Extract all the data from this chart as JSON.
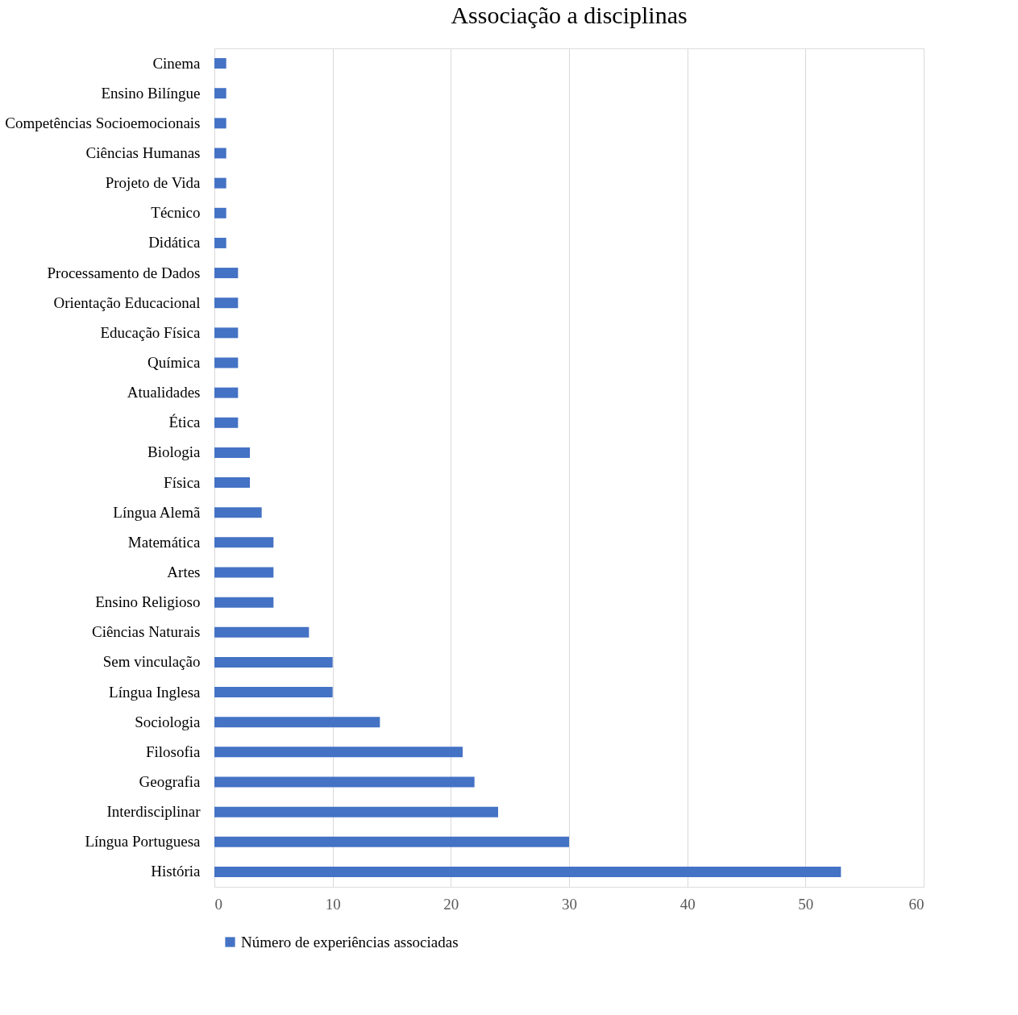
{
  "chart_data": {
    "type": "bar",
    "orientation": "horizontal",
    "title": "Associação a disciplinas",
    "categories": [
      "Cinema",
      "Ensino Bilíngue",
      "Competências Socioemocionais",
      "Ciências Humanas",
      "Projeto de Vida",
      "Técnico",
      "Didática",
      "Processamento de Dados",
      "Orientação Educacional",
      "Educação Física",
      "Química",
      "Atualidades",
      "Ética",
      "Biologia",
      "Física",
      "Língua Alemã",
      "Matemática",
      "Artes",
      "Ensino Religioso",
      "Ciências Naturais",
      "Sem vinculação",
      "Língua Inglesa",
      "Sociologia",
      "Filosofia",
      "Geografia",
      "Interdisciplinar",
      "Língua Portuguesa",
      "História"
    ],
    "series": [
      {
        "name": "Número de experiências associadas",
        "color": "#4472c4",
        "values": [
          1,
          1,
          1,
          1,
          1,
          1,
          1,
          2,
          2,
          2,
          2,
          2,
          2,
          3,
          3,
          4,
          5,
          5,
          5,
          8,
          10,
          10,
          14,
          21,
          22,
          24,
          30,
          53
        ]
      }
    ],
    "xlim": [
      0,
      60
    ],
    "xticks": [
      0,
      10,
      20,
      30,
      40,
      50,
      60
    ],
    "grid": "x",
    "legend": "bottom"
  }
}
